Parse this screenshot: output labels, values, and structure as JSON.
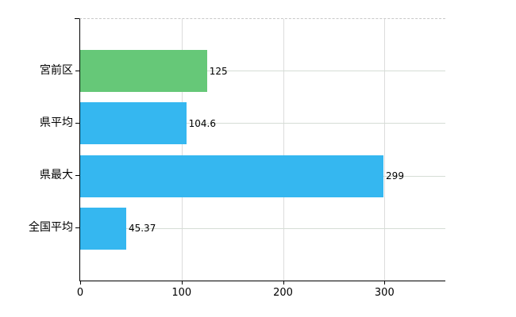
{
  "chart_data": {
    "type": "bar",
    "orientation": "horizontal",
    "categories": [
      "宮前区",
      "県平均",
      "県最大",
      "全国平均"
    ],
    "values": [
      125,
      104.6,
      299,
      45.37
    ],
    "value_labels": [
      "125",
      "104.6",
      "299",
      "45.37"
    ],
    "bar_colors": [
      "#66c878",
      "#35b7f0",
      "#35b7f0",
      "#35b7f0"
    ],
    "xlim": [
      0,
      360
    ],
    "xticks": [
      0,
      100,
      200,
      300
    ],
    "xtick_labels": [
      "0",
      "100",
      "200",
      "300"
    ],
    "title": "",
    "xlabel": "",
    "ylabel": "",
    "grid": {
      "horizontal": true,
      "vertical": true,
      "top_border": "dashed"
    },
    "colors": {
      "background": "#ffffff",
      "axis": "#000000",
      "grid_horizontal": "#d5ddd5",
      "grid_vertical": "#dcdcdc",
      "top_dash": "#c9c9c9",
      "text": "#000000",
      "green_bar": "#66c878",
      "blue_bar": "#35b7f0"
    }
  }
}
